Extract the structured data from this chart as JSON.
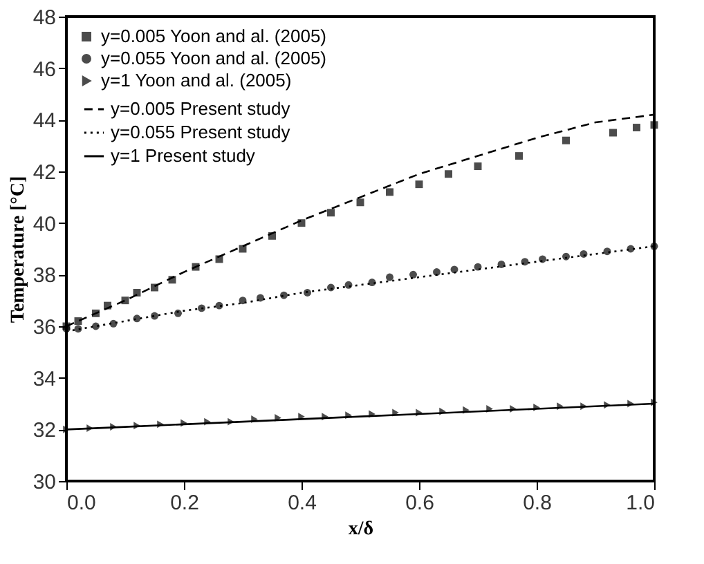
{
  "chart_data": {
    "type": "scatter",
    "xlabel": "x/δ",
    "ylabel": "Temperature [°C]",
    "xlim": [
      0,
      1
    ],
    "ylim": [
      30,
      48
    ],
    "xticks": [
      {
        "value": 0,
        "label": "0.0"
      },
      {
        "value": 0.2,
        "label": "0.2"
      },
      {
        "value": 0.4,
        "label": "0.4"
      },
      {
        "value": 0.6,
        "label": "0.6"
      },
      {
        "value": 0.8,
        "label": "0.8"
      },
      {
        "value": 1,
        "label": "1.0"
      }
    ],
    "yticks": [
      30,
      32,
      34,
      36,
      38,
      40,
      42,
      44,
      46,
      48
    ],
    "grid": false,
    "legend": "top left",
    "series": [
      {
        "name": "y=0.005 Yoon and al. (2005)",
        "type": "scatter",
        "marker": "square",
        "color": "#000000",
        "x": [
          0,
          0.02,
          0.05,
          0.07,
          0.1,
          0.12,
          0.15,
          0.18,
          0.22,
          0.26,
          0.3,
          0.35,
          0.4,
          0.45,
          0.5,
          0.55,
          0.6,
          0.65,
          0.7,
          0.77,
          0.85,
          0.93,
          0.97,
          1.0
        ],
        "values": [
          36.0,
          36.2,
          36.5,
          36.8,
          37.0,
          37.3,
          37.5,
          37.8,
          38.3,
          38.6,
          39.0,
          39.5,
          40.0,
          40.4,
          40.8,
          41.2,
          41.5,
          41.9,
          42.2,
          42.6,
          43.2,
          43.5,
          43.7,
          43.8
        ]
      },
      {
        "name": "y=0.055 Yoon and al. (2005)",
        "type": "scatter",
        "marker": "circle",
        "color": "#000000",
        "x": [
          0,
          0.02,
          0.05,
          0.08,
          0.12,
          0.15,
          0.19,
          0.23,
          0.26,
          0.3,
          0.33,
          0.37,
          0.41,
          0.45,
          0.48,
          0.52,
          0.55,
          0.59,
          0.63,
          0.66,
          0.7,
          0.74,
          0.78,
          0.81,
          0.85,
          0.88,
          0.92,
          0.96,
          1.0
        ],
        "values": [
          35.9,
          35.9,
          36.0,
          36.1,
          36.3,
          36.4,
          36.5,
          36.7,
          36.8,
          37.0,
          37.1,
          37.2,
          37.3,
          37.5,
          37.6,
          37.7,
          37.9,
          38.0,
          38.1,
          38.2,
          38.3,
          38.4,
          38.5,
          38.6,
          38.7,
          38.8,
          38.9,
          39.0,
          39.1
        ]
      },
      {
        "name": "y=1 Yoon and al. (2005)",
        "type": "scatter",
        "marker": "triangle",
        "color": "#000000",
        "x": [
          0,
          0.04,
          0.08,
          0.12,
          0.16,
          0.2,
          0.24,
          0.28,
          0.32,
          0.36,
          0.4,
          0.44,
          0.48,
          0.52,
          0.56,
          0.6,
          0.64,
          0.68,
          0.72,
          0.76,
          0.8,
          0.84,
          0.88,
          0.92,
          0.96,
          1.0
        ],
        "values": [
          32.0,
          32.05,
          32.1,
          32.15,
          32.2,
          32.25,
          32.3,
          32.3,
          32.4,
          32.45,
          32.5,
          32.5,
          32.55,
          32.6,
          32.65,
          32.65,
          32.7,
          32.75,
          32.8,
          32.8,
          32.85,
          32.9,
          32.9,
          32.95,
          33.0,
          33.05
        ]
      },
      {
        "name": "y=0.005 Present study",
        "type": "line",
        "line_style": "dashed",
        "color": "#000000",
        "x": [
          0,
          0.1,
          0.2,
          0.3,
          0.4,
          0.5,
          0.6,
          0.7,
          0.8,
          0.9,
          1.0
        ],
        "values": [
          36.0,
          37.0,
          38.1,
          39.1,
          40.1,
          41.0,
          41.9,
          42.6,
          43.3,
          43.9,
          44.2
        ]
      },
      {
        "name": "y=0.055 Present study",
        "type": "line",
        "line_style": "dotted",
        "color": "#000000",
        "x": [
          0,
          0.1,
          0.2,
          0.3,
          0.4,
          0.5,
          0.6,
          0.7,
          0.8,
          0.9,
          1.0
        ],
        "values": [
          35.8,
          36.2,
          36.6,
          36.9,
          37.3,
          37.6,
          37.9,
          38.2,
          38.5,
          38.8,
          39.1
        ]
      },
      {
        "name": "y=1 Present study",
        "type": "line",
        "line_style": "solid",
        "color": "#000000",
        "x": [
          0,
          0.1,
          0.2,
          0.3,
          0.4,
          0.5,
          0.6,
          0.7,
          0.8,
          0.9,
          1.0
        ],
        "values": [
          32.0,
          32.1,
          32.2,
          32.3,
          32.4,
          32.5,
          32.6,
          32.7,
          32.8,
          32.9,
          33.0
        ]
      }
    ]
  }
}
